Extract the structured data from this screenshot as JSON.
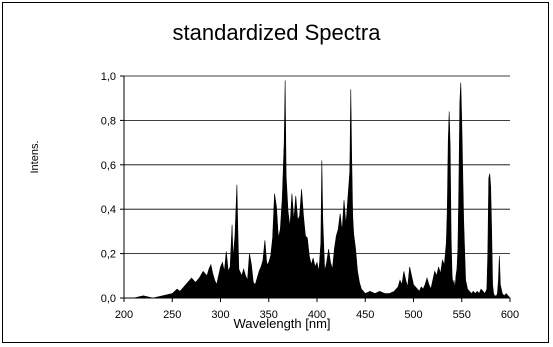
{
  "chart_data": {
    "type": "area",
    "title": "standardized Spectra",
    "xlabel": "Wavelength [nm]",
    "ylabel": "Intens.",
    "xlim": [
      200,
      600
    ],
    "ylim": [
      0,
      1.0
    ],
    "x_ticks": [
      "200",
      "250",
      "300",
      "350",
      "400",
      "450",
      "500",
      "550",
      "600"
    ],
    "y_ticks": [
      "0,0",
      "0,2",
      "0,4",
      "0,6",
      "0,8",
      "1,0"
    ],
    "grid": "horizontal",
    "fill_color": "#000000",
    "series": [
      {
        "x": [
          200,
          210,
          220,
          230,
          240,
          250,
          255,
          258,
          262,
          266,
          270,
          274,
          278,
          282,
          286,
          288,
          290,
          292,
          294,
          296,
          298,
          300,
          302,
          304,
          306,
          308,
          310,
          312,
          313,
          315,
          317,
          318,
          319,
          320,
          322,
          324,
          326,
          328,
          330,
          332,
          334,
          336,
          338,
          340,
          342,
          344,
          346,
          348,
          350,
          352,
          354,
          356,
          358,
          360,
          362,
          364,
          366,
          367,
          368,
          370,
          372,
          374,
          376,
          378,
          380,
          382,
          384,
          386,
          388,
          390,
          392,
          394,
          396,
          398,
          400,
          402,
          404,
          405,
          406,
          408,
          410,
          412,
          414,
          416,
          418,
          420,
          422,
          424,
          426,
          428,
          430,
          432,
          434,
          435,
          436,
          437,
          438,
          440,
          442,
          444,
          446,
          450,
          455,
          460,
          465,
          470,
          475,
          480,
          484,
          486,
          488,
          490,
          492,
          494,
          496,
          500,
          504,
          506,
          508,
          510,
          512,
          514,
          516,
          518,
          520,
          522,
          524,
          526,
          528,
          530,
          532,
          534,
          535,
          536,
          537,
          538,
          539,
          540,
          541,
          542,
          543,
          544,
          545,
          546,
          547,
          548,
          549,
          550,
          552,
          554,
          556,
          558,
          560,
          562,
          564,
          566,
          568,
          570,
          572,
          574,
          576,
          577,
          578,
          579,
          580,
          581,
          582,
          583,
          584,
          586,
          587,
          588,
          589,
          590,
          592,
          594,
          596,
          598,
          600
        ],
        "values": [
          0.0,
          0.0,
          0.01,
          0.0,
          0.01,
          0.02,
          0.04,
          0.03,
          0.05,
          0.07,
          0.09,
          0.07,
          0.09,
          0.12,
          0.1,
          0.13,
          0.15,
          0.11,
          0.08,
          0.06,
          0.1,
          0.14,
          0.16,
          0.12,
          0.21,
          0.12,
          0.14,
          0.33,
          0.18,
          0.28,
          0.51,
          0.3,
          0.13,
          0.12,
          0.1,
          0.13,
          0.1,
          0.08,
          0.2,
          0.15,
          0.07,
          0.06,
          0.09,
          0.12,
          0.14,
          0.17,
          0.26,
          0.15,
          0.16,
          0.19,
          0.27,
          0.47,
          0.41,
          0.27,
          0.31,
          0.45,
          0.7,
          0.98,
          0.55,
          0.39,
          0.32,
          0.47,
          0.35,
          0.46,
          0.35,
          0.37,
          0.49,
          0.37,
          0.28,
          0.27,
          0.19,
          0.15,
          0.18,
          0.14,
          0.16,
          0.12,
          0.25,
          0.62,
          0.35,
          0.12,
          0.16,
          0.22,
          0.16,
          0.13,
          0.22,
          0.28,
          0.31,
          0.38,
          0.3,
          0.44,
          0.33,
          0.45,
          0.57,
          0.94,
          0.62,
          0.37,
          0.29,
          0.22,
          0.12,
          0.07,
          0.04,
          0.02,
          0.03,
          0.02,
          0.03,
          0.02,
          0.02,
          0.03,
          0.05,
          0.08,
          0.06,
          0.12,
          0.08,
          0.05,
          0.14,
          0.06,
          0.04,
          0.03,
          0.05,
          0.04,
          0.06,
          0.09,
          0.06,
          0.04,
          0.08,
          0.12,
          0.1,
          0.14,
          0.11,
          0.17,
          0.15,
          0.25,
          0.4,
          0.71,
          0.84,
          0.68,
          0.27,
          0.1,
          0.06,
          0.08,
          0.04,
          0.1,
          0.13,
          0.22,
          0.5,
          0.88,
          0.97,
          0.8,
          0.35,
          0.08,
          0.04,
          0.03,
          0.02,
          0.03,
          0.02,
          0.03,
          0.02,
          0.04,
          0.03,
          0.02,
          0.04,
          0.2,
          0.54,
          0.56,
          0.5,
          0.3,
          0.06,
          0.02,
          0.01,
          0.01,
          0.02,
          0.08,
          0.19,
          0.06,
          0.02,
          0.01,
          0.02,
          0.01,
          0.0
        ]
      }
    ]
  }
}
